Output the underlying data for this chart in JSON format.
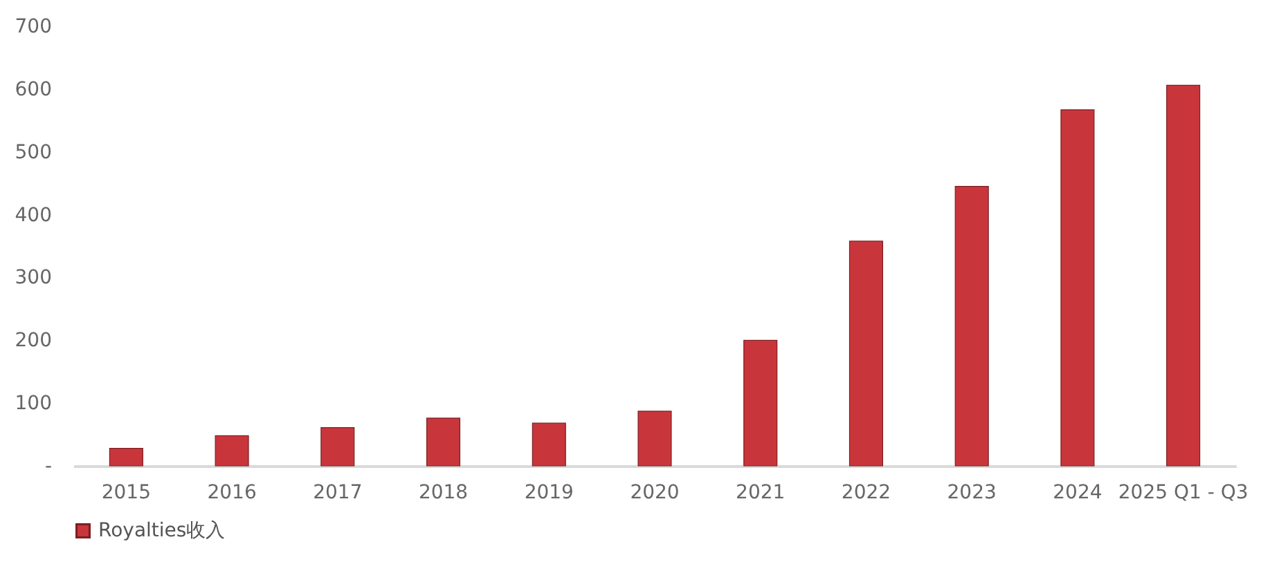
{
  "chart_data": {
    "type": "bar",
    "categories": [
      "2015",
      "2016",
      "2017",
      "2018",
      "2019",
      "2020",
      "2021",
      "2022",
      "2023",
      "2024",
      "2025 Q1 - Q3"
    ],
    "series": [
      {
        "name": "Royalties收入",
        "color": "#c8363c",
        "values": [
          28,
          48,
          61,
          76,
          68,
          87,
          200,
          358,
          445,
          567,
          606
        ]
      }
    ],
    "ylim": [
      0,
      700
    ],
    "yticks": [
      {
        "value": 0,
        "label": "-"
      },
      100,
      200,
      300,
      400,
      500,
      600,
      700
    ],
    "grid": false,
    "legend": "bottom"
  }
}
